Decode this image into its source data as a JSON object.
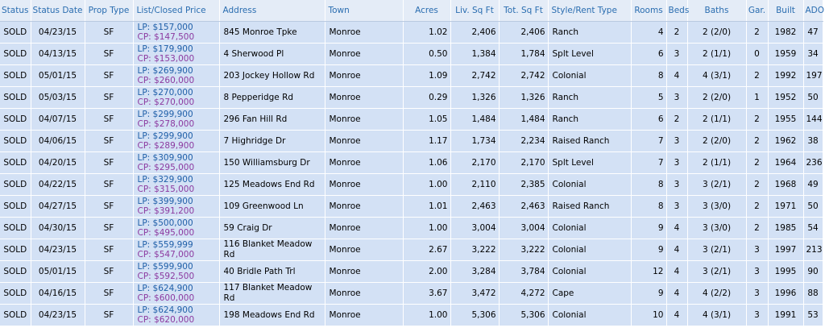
{
  "columns": [
    "Status",
    "Status Date",
    "Prop Type",
    "List/Closed Price",
    "Address",
    "Town",
    "Acres",
    "Liv. Sq Ft",
    "Tot. Sq Ft",
    "Style/Rent Type",
    "Rooms",
    "Beds",
    "Baths",
    "Gar.",
    "Built",
    "ADOM"
  ],
  "rows": [
    {
      "status": "SOLD",
      "date": "04/23/15",
      "type": "SF",
      "lp": "LP: $157,000",
      "cp": "CP: $147,500",
      "address": "845 Monroe Tpke",
      "town": "Monroe",
      "acres": "1.02",
      "liv": "2,406",
      "tot": "2,406",
      "style": "Ranch",
      "rooms": "4",
      "beds": "2",
      "baths": "2 (2/0)",
      "gar": "2",
      "built": "1982",
      "adom": "47"
    },
    {
      "status": "SOLD",
      "date": "04/13/15",
      "type": "SF",
      "lp": "LP: $179,900",
      "cp": "CP: $153,000",
      "address": "4 Sherwood Pl",
      "town": "Monroe",
      "acres": "0.50",
      "liv": "1,384",
      "tot": "1,784",
      "style": "Splt Level",
      "rooms": "6",
      "beds": "3",
      "baths": "2 (1/1)",
      "gar": "0",
      "built": "1959",
      "adom": "34"
    },
    {
      "status": "SOLD",
      "date": "05/01/15",
      "type": "SF",
      "lp": "LP: $269,900",
      "cp": "CP: $260,000",
      "address": "203 Jockey Hollow Rd",
      "town": "Monroe",
      "acres": "1.09",
      "liv": "2,742",
      "tot": "2,742",
      "style": "Colonial",
      "rooms": "8",
      "beds": "4",
      "baths": "4 (3/1)",
      "gar": "2",
      "built": "1992",
      "adom": "197"
    },
    {
      "status": "SOLD",
      "date": "05/03/15",
      "type": "SF",
      "lp": "LP: $270,000",
      "cp": "CP: $270,000",
      "address": "8 Pepperidge Rd",
      "town": "Monroe",
      "acres": "0.29",
      "liv": "1,326",
      "tot": "1,326",
      "style": "Ranch",
      "rooms": "5",
      "beds": "3",
      "baths": "2 (2/0)",
      "gar": "1",
      "built": "1952",
      "adom": "50"
    },
    {
      "status": "SOLD",
      "date": "04/07/15",
      "type": "SF",
      "lp": "LP: $299,900",
      "cp": "CP: $278,000",
      "address": "296 Fan Hill Rd",
      "town": "Monroe",
      "acres": "1.05",
      "liv": "1,484",
      "tot": "1,484",
      "style": "Ranch",
      "rooms": "6",
      "beds": "2",
      "baths": "2 (1/1)",
      "gar": "2",
      "built": "1955",
      "adom": "144"
    },
    {
      "status": "SOLD",
      "date": "04/06/15",
      "type": "SF",
      "lp": "LP: $299,900",
      "cp": "CP: $289,900",
      "address": "7 Highridge Dr",
      "town": "Monroe",
      "acres": "1.17",
      "liv": "1,734",
      "tot": "2,234",
      "style": "Raised Ranch",
      "rooms": "7",
      "beds": "3",
      "baths": "2 (2/0)",
      "gar": "2",
      "built": "1962",
      "adom": "38"
    },
    {
      "status": "SOLD",
      "date": "04/20/15",
      "type": "SF",
      "lp": "LP: $309,900",
      "cp": "CP: $295,000",
      "address": "150 Williamsburg Dr",
      "town": "Monroe",
      "acres": "1.06",
      "liv": "2,170",
      "tot": "2,170",
      "style": "Splt Level",
      "rooms": "7",
      "beds": "3",
      "baths": "2 (1/1)",
      "gar": "2",
      "built": "1964",
      "adom": "236"
    },
    {
      "status": "SOLD",
      "date": "04/22/15",
      "type": "SF",
      "lp": "LP: $329,900",
      "cp": "CP: $315,000",
      "address": "125 Meadows End Rd",
      "town": "Monroe",
      "acres": "1.00",
      "liv": "2,110",
      "tot": "2,385",
      "style": "Colonial",
      "rooms": "8",
      "beds": "3",
      "baths": "3 (2/1)",
      "gar": "2",
      "built": "1968",
      "adom": "49"
    },
    {
      "status": "SOLD",
      "date": "04/27/15",
      "type": "SF",
      "lp": "LP: $399,900",
      "cp": "CP: $391,200",
      "address": "109 Greenwood Ln",
      "town": "Monroe",
      "acres": "1.01",
      "liv": "2,463",
      "tot": "2,463",
      "style": "Raised Ranch",
      "rooms": "8",
      "beds": "3",
      "baths": "3 (3/0)",
      "gar": "2",
      "built": "1971",
      "adom": "50"
    },
    {
      "status": "SOLD",
      "date": "04/30/15",
      "type": "SF",
      "lp": "LP: $500,000",
      "cp": "CP: $495,000",
      "address": "59 Craig Dr",
      "town": "Monroe",
      "acres": "1.00",
      "liv": "3,004",
      "tot": "3,004",
      "style": "Colonial",
      "rooms": "9",
      "beds": "4",
      "baths": "3 (3/0)",
      "gar": "2",
      "built": "1985",
      "adom": "54"
    },
    {
      "status": "SOLD",
      "date": "04/23/15",
      "type": "SF",
      "lp": "LP: $559,999",
      "cp": "CP: $547,000",
      "address": "116 Blanket Meadow Rd",
      "town": "Monroe",
      "acres": "2.67",
      "liv": "3,222",
      "tot": "3,222",
      "style": "Colonial",
      "rooms": "9",
      "beds": "4",
      "baths": "3 (2/1)",
      "gar": "3",
      "built": "1997",
      "adom": "213"
    },
    {
      "status": "SOLD",
      "date": "05/01/15",
      "type": "SF",
      "lp": "LP: $599,900",
      "cp": "CP: $592,500",
      "address": "40 Bridle Path Trl",
      "town": "Monroe",
      "acres": "2.00",
      "liv": "3,284",
      "tot": "3,784",
      "style": "Colonial",
      "rooms": "12",
      "beds": "4",
      "baths": "3 (2/1)",
      "gar": "3",
      "built": "1995",
      "adom": "90"
    },
    {
      "status": "SOLD",
      "date": "04/16/15",
      "type": "SF",
      "lp": "LP: $624,900",
      "cp": "CP: $600,000",
      "address": "117 Blanket Meadow Rd",
      "town": "Monroe",
      "acres": "3.67",
      "liv": "3,472",
      "tot": "4,272",
      "style": "Cape",
      "rooms": "9",
      "beds": "4",
      "baths": "4 (2/2)",
      "gar": "3",
      "built": "1996",
      "adom": "88"
    },
    {
      "status": "SOLD",
      "date": "04/23/15",
      "type": "SF",
      "lp": "LP: $624,900",
      "cp": "CP: $620,000",
      "address": "198 Meadows End Rd",
      "town": "Monroe",
      "acres": "1.00",
      "liv": "5,306",
      "tot": "5,306",
      "style": "Colonial",
      "rooms": "10",
      "beds": "4",
      "baths": "4 (3/1)",
      "gar": "3",
      "built": "1991",
      "adom": "53"
    }
  ]
}
